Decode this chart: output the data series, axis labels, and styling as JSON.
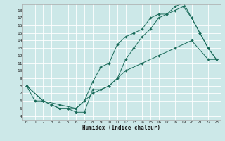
{
  "xlabel": "Humidex (Indice chaleur)",
  "bg_color": "#cce8e8",
  "line_color": "#1a6b5a",
  "grid_color": "#ffffff",
  "xlim": [
    -0.5,
    23.5
  ],
  "ylim": [
    3.5,
    18.8
  ],
  "xticks": [
    0,
    1,
    2,
    3,
    4,
    5,
    6,
    7,
    8,
    9,
    10,
    11,
    12,
    13,
    14,
    15,
    16,
    17,
    18,
    19,
    20,
    21,
    22,
    23
  ],
  "yticks": [
    4,
    5,
    6,
    7,
    8,
    9,
    10,
    11,
    12,
    13,
    14,
    15,
    16,
    17,
    18
  ],
  "line1_x": [
    0,
    1,
    2,
    3,
    4,
    5,
    6,
    7,
    8,
    9,
    10,
    11,
    12,
    13,
    14,
    15,
    16,
    17,
    18,
    19,
    20,
    21,
    22,
    23
  ],
  "line1_y": [
    8,
    6,
    6,
    5.5,
    5,
    5,
    4.5,
    4.5,
    7.5,
    7.5,
    8,
    9,
    11.5,
    13,
    14.5,
    15.5,
    17,
    17.5,
    18,
    18.5,
    17,
    15,
    13,
    11.5
  ],
  "line2_x": [
    0,
    2,
    3,
    4,
    5,
    6,
    7,
    8,
    9,
    10,
    11,
    12,
    13,
    14,
    15,
    16,
    17,
    18,
    19,
    20,
    21,
    22,
    23
  ],
  "line2_y": [
    8,
    6,
    5.5,
    5,
    5,
    5,
    6,
    8.5,
    10.5,
    11,
    13.5,
    14.5,
    15,
    15.5,
    17,
    17.5,
    17.5,
    18.5,
    19,
    17,
    15,
    13,
    11.5
  ],
  "line3_x": [
    0,
    2,
    4,
    6,
    8,
    10,
    12,
    14,
    16,
    18,
    20,
    22,
    23
  ],
  "line3_y": [
    8,
    6,
    5.5,
    5,
    7,
    8,
    10,
    11,
    12,
    13,
    14,
    11.5,
    11.5
  ]
}
